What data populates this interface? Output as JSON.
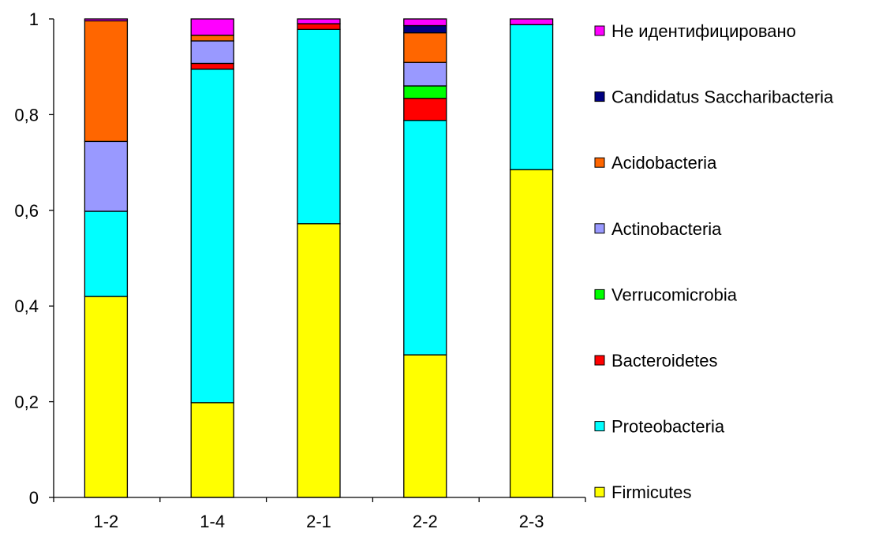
{
  "chart_data": {
    "type": "bar",
    "stacked": true,
    "title": "",
    "xlabel": "",
    "ylabel": "",
    "ylim": [
      0,
      1
    ],
    "yticks": [
      "0",
      "0,2",
      "0,4",
      "0,6",
      "0,8",
      "1"
    ],
    "categories": [
      "1-2",
      "1-4",
      "2-1",
      "2-2",
      "2-3"
    ],
    "grid": false,
    "legend_position": "right",
    "series": [
      {
        "name": "Firmicutes",
        "color": "#ffff00",
        "values": [
          0.42,
          0.198,
          0.572,
          0.298,
          0.685
        ]
      },
      {
        "name": "Proteobacteria",
        "color": "#00ffff",
        "values": [
          0.178,
          0.697,
          0.406,
          0.49,
          0.303
        ]
      },
      {
        "name": "Bacteroidetes",
        "color": "#ff0000",
        "values": [
          0,
          0.012,
          0.012,
          0.046,
          0
        ]
      },
      {
        "name": "Verrucomicrobia",
        "color": "#00ff00",
        "values": [
          0,
          0,
          0,
          0.026,
          0
        ]
      },
      {
        "name": "Actinobacteria",
        "color": "#9999ff",
        "values": [
          0.146,
          0.047,
          0,
          0.049,
          0
        ]
      },
      {
        "name": "Acidobacteria",
        "color": "#ff6600",
        "values": [
          0.252,
          0.012,
          0,
          0.062,
          0
        ]
      },
      {
        "name": "Candidatus Saccharibacteria",
        "color": "#000080",
        "values": [
          0,
          0,
          0,
          0.015,
          0
        ]
      },
      {
        "name": "Не идентифицировано",
        "color": "#ff00ff",
        "values": [
          0.004,
          0.034,
          0.01,
          0.014,
          0.012
        ]
      }
    ]
  }
}
